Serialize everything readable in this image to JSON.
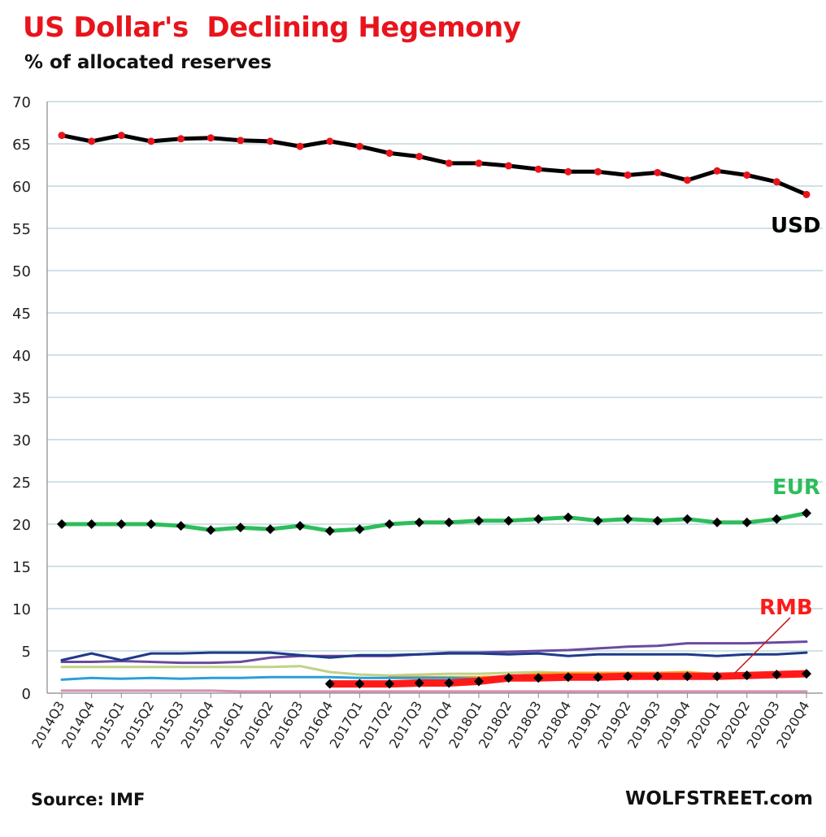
{
  "header": {
    "title": "US Dollar's  Declining Hegemony",
    "subtitle": "% of allocated reserves"
  },
  "footer": {
    "source": "Source: IMF",
    "brand": "WOLFSTREET.com"
  },
  "colors": {
    "usd_line": "#000000",
    "usd_marker": "#e8141c",
    "eur_line": "#2ebd5b",
    "rmb_line": "#ff1a1a",
    "marker_dark": "#000000",
    "grid": "#9fc3cf",
    "title": "#e8141c"
  },
  "chart_data": {
    "type": "line",
    "title": "US Dollar's  Declining Hegemony",
    "ylabel": "% of allocated reserves",
    "ylim": [
      0,
      70
    ],
    "yticks": [
      0,
      5,
      10,
      15,
      20,
      25,
      30,
      35,
      40,
      45,
      50,
      55,
      60,
      65,
      70
    ],
    "grid": true,
    "categories": [
      "2014Q3",
      "2014Q4",
      "2015Q1",
      "2015Q2",
      "2015Q3",
      "2015Q4",
      "2016Q1",
      "2016Q2",
      "2016Q3",
      "2016Q4",
      "2017Q1",
      "2017Q2",
      "2017Q3",
      "2017Q4",
      "2018Q1",
      "2018Q2",
      "2018Q3",
      "2018Q4",
      "2019Q1",
      "2019Q2",
      "2019Q3",
      "2019Q4",
      "2020Q1",
      "2020Q2",
      "2020Q3",
      "2020Q4"
    ],
    "series": [
      {
        "name": "USD",
        "label": "USD",
        "labelled": true,
        "color": "#000000",
        "width": 5,
        "marker": "dot",
        "marker_color": "#e8141c",
        "values": [
          66.0,
          65.3,
          66.0,
          65.3,
          65.6,
          65.7,
          65.4,
          65.3,
          64.7,
          65.3,
          64.7,
          63.9,
          63.5,
          62.7,
          62.7,
          62.4,
          62.0,
          61.7,
          61.7,
          61.3,
          61.6,
          60.7,
          61.8,
          61.3,
          60.5,
          59.0
        ]
      },
      {
        "name": "EUR",
        "label": "EUR",
        "labelled": true,
        "color": "#2ebd5b",
        "width": 5,
        "marker": "diamond",
        "marker_color": "#000000",
        "values": [
          20.0,
          20.0,
          20.0,
          20.0,
          19.8,
          19.3,
          19.6,
          19.4,
          19.8,
          19.2,
          19.4,
          20.0,
          20.2,
          20.2,
          20.4,
          20.4,
          20.6,
          20.8,
          20.4,
          20.6,
          20.4,
          20.6,
          20.2,
          20.2,
          20.6,
          21.3
        ]
      },
      {
        "name": "RMB",
        "label": "RMB",
        "labelled": true,
        "color": "#ff1a1a",
        "width": 9,
        "marker": "diamond",
        "marker_color": "#000000",
        "values": [
          null,
          null,
          null,
          null,
          null,
          null,
          null,
          null,
          null,
          1.1,
          1.1,
          1.1,
          1.2,
          1.2,
          1.4,
          1.8,
          1.8,
          1.9,
          1.9,
          2.0,
          2.0,
          2.0,
          2.0,
          2.1,
          2.2,
          2.3
        ]
      },
      {
        "name": "Other-purple",
        "labelled": false,
        "color": "#6a4aa0",
        "width": 3,
        "values": [
          3.7,
          3.7,
          3.8,
          3.7,
          3.6,
          3.6,
          3.7,
          4.2,
          4.4,
          4.4,
          4.4,
          4.4,
          4.6,
          4.8,
          4.8,
          4.9,
          5.0,
          5.1,
          5.3,
          5.5,
          5.6,
          5.9,
          5.9,
          5.9,
          6.0,
          6.1
        ]
      },
      {
        "name": "Other-navy",
        "labelled": false,
        "color": "#1e3a8a",
        "width": 3,
        "values": [
          3.9,
          4.7,
          3.9,
          4.7,
          4.7,
          4.8,
          4.8,
          4.8,
          4.5,
          4.2,
          4.5,
          4.5,
          4.6,
          4.7,
          4.7,
          4.6,
          4.7,
          4.4,
          4.6,
          4.6,
          4.6,
          4.6,
          4.4,
          4.6,
          4.6,
          4.8
        ]
      },
      {
        "name": "Other-olive",
        "labelled": false,
        "color": "#c2d187",
        "width": 3,
        "values": [
          3.1,
          3.1,
          3.1,
          3.1,
          3.1,
          3.1,
          3.1,
          3.1,
          3.2,
          2.5,
          2.2,
          2.1,
          2.2,
          2.3,
          2.3,
          2.4,
          2.5,
          2.4,
          2.3,
          2.3,
          2.3,
          2.4,
          2.3,
          2.0,
          2.2,
          2.3
        ]
      },
      {
        "name": "Other-orange",
        "labelled": false,
        "color": "#f5a623",
        "width": 3,
        "values": [
          null,
          null,
          null,
          null,
          null,
          null,
          null,
          null,
          null,
          null,
          null,
          1.9,
          1.9,
          1.9,
          1.9,
          2.0,
          2.3,
          2.4,
          2.4,
          2.4,
          2.4,
          2.5,
          2.2,
          1.9,
          2.1,
          2.2
        ]
      },
      {
        "name": "Other-teal",
        "labelled": false,
        "color": "#2a9fd8",
        "width": 3,
        "values": [
          1.6,
          1.8,
          1.7,
          1.8,
          1.7,
          1.8,
          1.8,
          1.9,
          1.9,
          1.9,
          1.8,
          1.8,
          1.8,
          1.8,
          1.7,
          1.8,
          1.8,
          1.8,
          1.8,
          1.9,
          1.8,
          1.9,
          1.8,
          1.9,
          2.0,
          2.1
        ]
      },
      {
        "name": "Other-pink",
        "labelled": false,
        "color": "#d68fb2",
        "width": 3,
        "values": [
          0.3,
          0.3,
          0.3,
          0.3,
          0.3,
          0.3,
          0.2,
          0.2,
          0.2,
          0.2,
          0.2,
          0.2,
          0.2,
          0.2,
          0.2,
          0.2,
          0.2,
          0.2,
          0.2,
          0.2,
          0.2,
          0.2,
          0.2,
          0.2,
          0.2,
          0.2
        ]
      }
    ]
  }
}
